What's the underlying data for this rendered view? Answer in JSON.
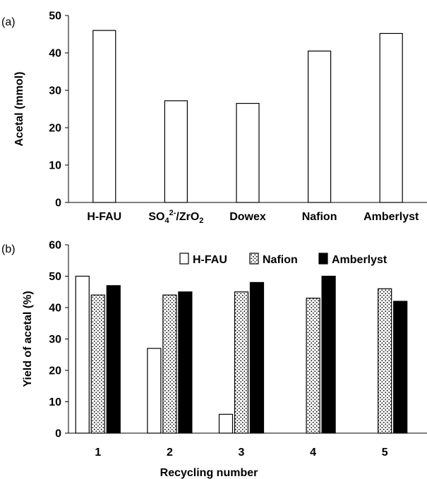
{
  "chart_data": [
    {
      "type": "bar",
      "panel_label": "(a)",
      "categories": [
        {
          "main": "H-FAU"
        },
        {
          "main": "SO",
          "sub": "4",
          "sup": "2-",
          "rest": "/ZrO",
          "sub2": "2"
        },
        {
          "main": "Dowex"
        },
        {
          "main": "Nafion"
        },
        {
          "main": "Amberlyst"
        }
      ],
      "values": [
        46,
        27.2,
        26.5,
        40.5,
        45.2
      ],
      "ylabel": "Acetal (mmol)",
      "xlabel": "",
      "ylim": [
        0,
        50
      ],
      "yticks": [
        0,
        10,
        20,
        30,
        40,
        50
      ],
      "grid": false,
      "bar_fill": "#ffffff",
      "bar_stroke": "#000000"
    },
    {
      "type": "bar",
      "panel_label": "(b)",
      "categories": [
        "1",
        "2",
        "3",
        "4",
        "5"
      ],
      "series": [
        {
          "name": "H-FAU",
          "values": [
            50,
            27,
            6,
            0,
            0
          ],
          "pattern": "white"
        },
        {
          "name": "Nafion",
          "values": [
            44,
            44,
            45,
            43,
            46
          ],
          "pattern": "dots"
        },
        {
          "name": "Amberlyst",
          "values": [
            47,
            45,
            48,
            50,
            42
          ],
          "pattern": "black"
        }
      ],
      "ylabel": "Yield of acetal (%)",
      "xlabel": "Recycling number",
      "ylim": [
        0,
        60
      ],
      "yticks": [
        0,
        10,
        20,
        30,
        40,
        50,
        60
      ],
      "grid": false,
      "legend_position": "top-right"
    }
  ]
}
